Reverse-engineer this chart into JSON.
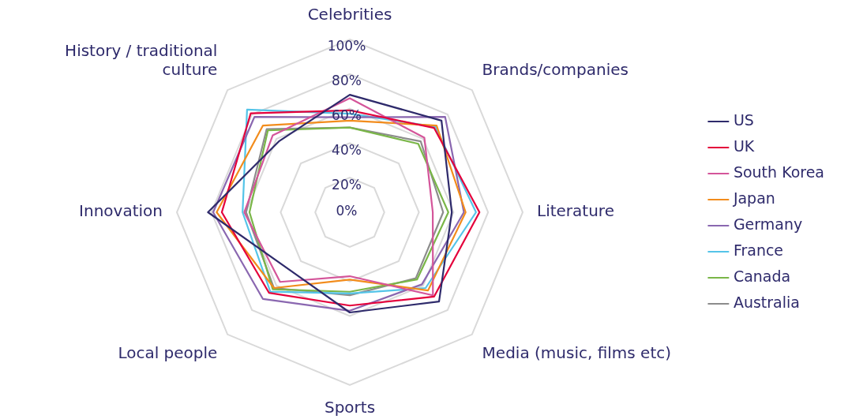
{
  "chart_data": {
    "type": "radar",
    "categories": [
      "Celebrities",
      "Brands/companies",
      "Literature",
      "Media (music, films etc)",
      "Sports",
      "Local people",
      "Innovation",
      "History / traditional culture"
    ],
    "ylim": [
      0,
      100
    ],
    "yticks": [
      {
        "value": 0,
        "label": "0%"
      },
      {
        "value": 20,
        "label": "20%"
      },
      {
        "value": 40,
        "label": "40%"
      },
      {
        "value": 60,
        "label": "60%"
      },
      {
        "value": 80,
        "label": "80%"
      },
      {
        "value": 100,
        "label": "100%"
      }
    ],
    "grid": true,
    "legend": "right",
    "marker": "none",
    "series": [
      {
        "name": "US",
        "color": "#2e2a6b",
        "values": [
          68,
          75,
          59,
          73,
          58,
          48,
          82,
          58
        ]
      },
      {
        "name": "UK",
        "color": "#e4003b",
        "values": [
          59,
          69,
          75,
          69,
          54,
          66,
          74,
          81
        ]
      },
      {
        "name": "South Korea",
        "color": "#d4559a",
        "values": [
          66,
          61,
          48,
          68,
          37,
          57,
          61,
          63
        ]
      },
      {
        "name": "Japan",
        "color": "#f28c1c",
        "values": [
          53,
          71,
          67,
          64,
          39,
          62,
          77,
          71
        ]
      },
      {
        "name": "Germany",
        "color": "#8a67b0",
        "values": [
          55,
          78,
          66,
          59,
          57,
          71,
          79,
          78
        ]
      },
      {
        "name": "France",
        "color": "#54c4e8",
        "values": [
          57,
          70,
          73,
          62,
          47,
          65,
          62,
          84
        ]
      },
      {
        "name": "Canada",
        "color": "#7ab648",
        "values": [
          49,
          56,
          57,
          55,
          46,
          63,
          58,
          67
        ]
      },
      {
        "name": "Australia",
        "color": "#8c8c8c",
        "values": [
          49,
          58,
          54,
          54,
          48,
          62,
          60,
          68
        ]
      }
    ]
  }
}
